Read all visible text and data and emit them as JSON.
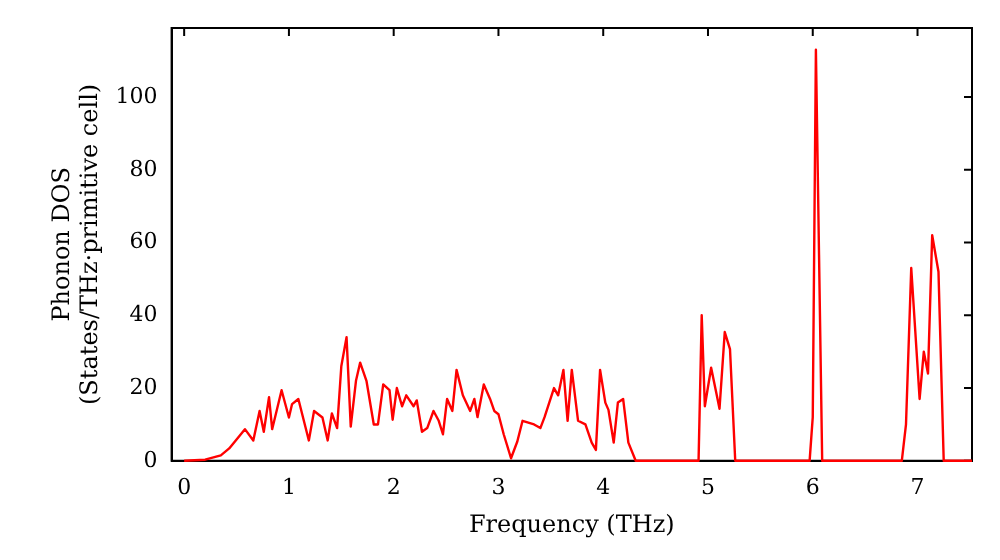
{
  "chart_data": {
    "type": "line",
    "xlabel": "Frequency (THz)",
    "ylabel": "Phonon DOS\n(States/THz·primitive cell)",
    "x": [
      0,
      0.2,
      0.35,
      0.43,
      0.58,
      0.66,
      0.72,
      0.76,
      0.81,
      0.84,
      0.93,
      1.0,
      1.03,
      1.09,
      1.16,
      1.19,
      1.24,
      1.32,
      1.37,
      1.41,
      1.46,
      1.5,
      1.55,
      1.59,
      1.64,
      1.68,
      1.74,
      1.81,
      1.85,
      1.9,
      1.96,
      1.99,
      2.03,
      2.08,
      2.12,
      2.19,
      2.22,
      2.27,
      2.32,
      2.38,
      2.43,
      2.47,
      2.51,
      2.56,
      2.6,
      2.66,
      2.73,
      2.77,
      2.8,
      2.86,
      2.92,
      2.96,
      3.0,
      3.05,
      3.12,
      3.18,
      3.23,
      3.34,
      3.4,
      3.44,
      3.53,
      3.57,
      3.62,
      3.66,
      3.7,
      3.76,
      3.83,
      3.89,
      3.93,
      3.97,
      4.02,
      4.05,
      4.1,
      4.14,
      4.19,
      4.24,
      4.31,
      4.91,
      4.94,
      4.97,
      5.03,
      5.08,
      5.11,
      5.16,
      5.21,
      5.26,
      5.97,
      6.0,
      6.03,
      6.09,
      6.85,
      6.89,
      6.94,
      7.02,
      7.06,
      7.1,
      7.14,
      7.2,
      7.25,
      7.52
    ],
    "series": [
      {
        "color": "#ff0000",
        "values": [
          0,
          0.3,
          1.5,
          3.4,
          8.7,
          5.6,
          13.7,
          8,
          17.5,
          8.7,
          19.4,
          11.9,
          15.6,
          17,
          9,
          5.6,
          13.7,
          11.9,
          5.6,
          13,
          9,
          26,
          34,
          9.4,
          22,
          27,
          22,
          10,
          10,
          21,
          19.4,
          11.3,
          20,
          15,
          18,
          15,
          16.6,
          8,
          9,
          13.7,
          11,
          7.3,
          17,
          13.7,
          25,
          18,
          13.7,
          17,
          12,
          21,
          17,
          13.7,
          12.8,
          7.3,
          0.7,
          5.3,
          11,
          10,
          9,
          12,
          20,
          18,
          25,
          11,
          25,
          11,
          10,
          5,
          3,
          25,
          16,
          14,
          5,
          16,
          17,
          5,
          0,
          0,
          40,
          15,
          25.6,
          18.6,
          14.3,
          35.4,
          30.7,
          0,
          0,
          12,
          113,
          0,
          0,
          10,
          53,
          17,
          30,
          24,
          62,
          52,
          0,
          0
        ]
      }
    ],
    "xlim": [
      -0.12,
      7.52
    ],
    "xticks": [
      0,
      1,
      2,
      3,
      4,
      5,
      6,
      7
    ],
    "ylim": [
      0,
      119
    ],
    "yticks": [
      0,
      20,
      40,
      60,
      80,
      100
    ],
    "grid": false,
    "legend": false,
    "marker": "none",
    "line_style": "solid"
  }
}
